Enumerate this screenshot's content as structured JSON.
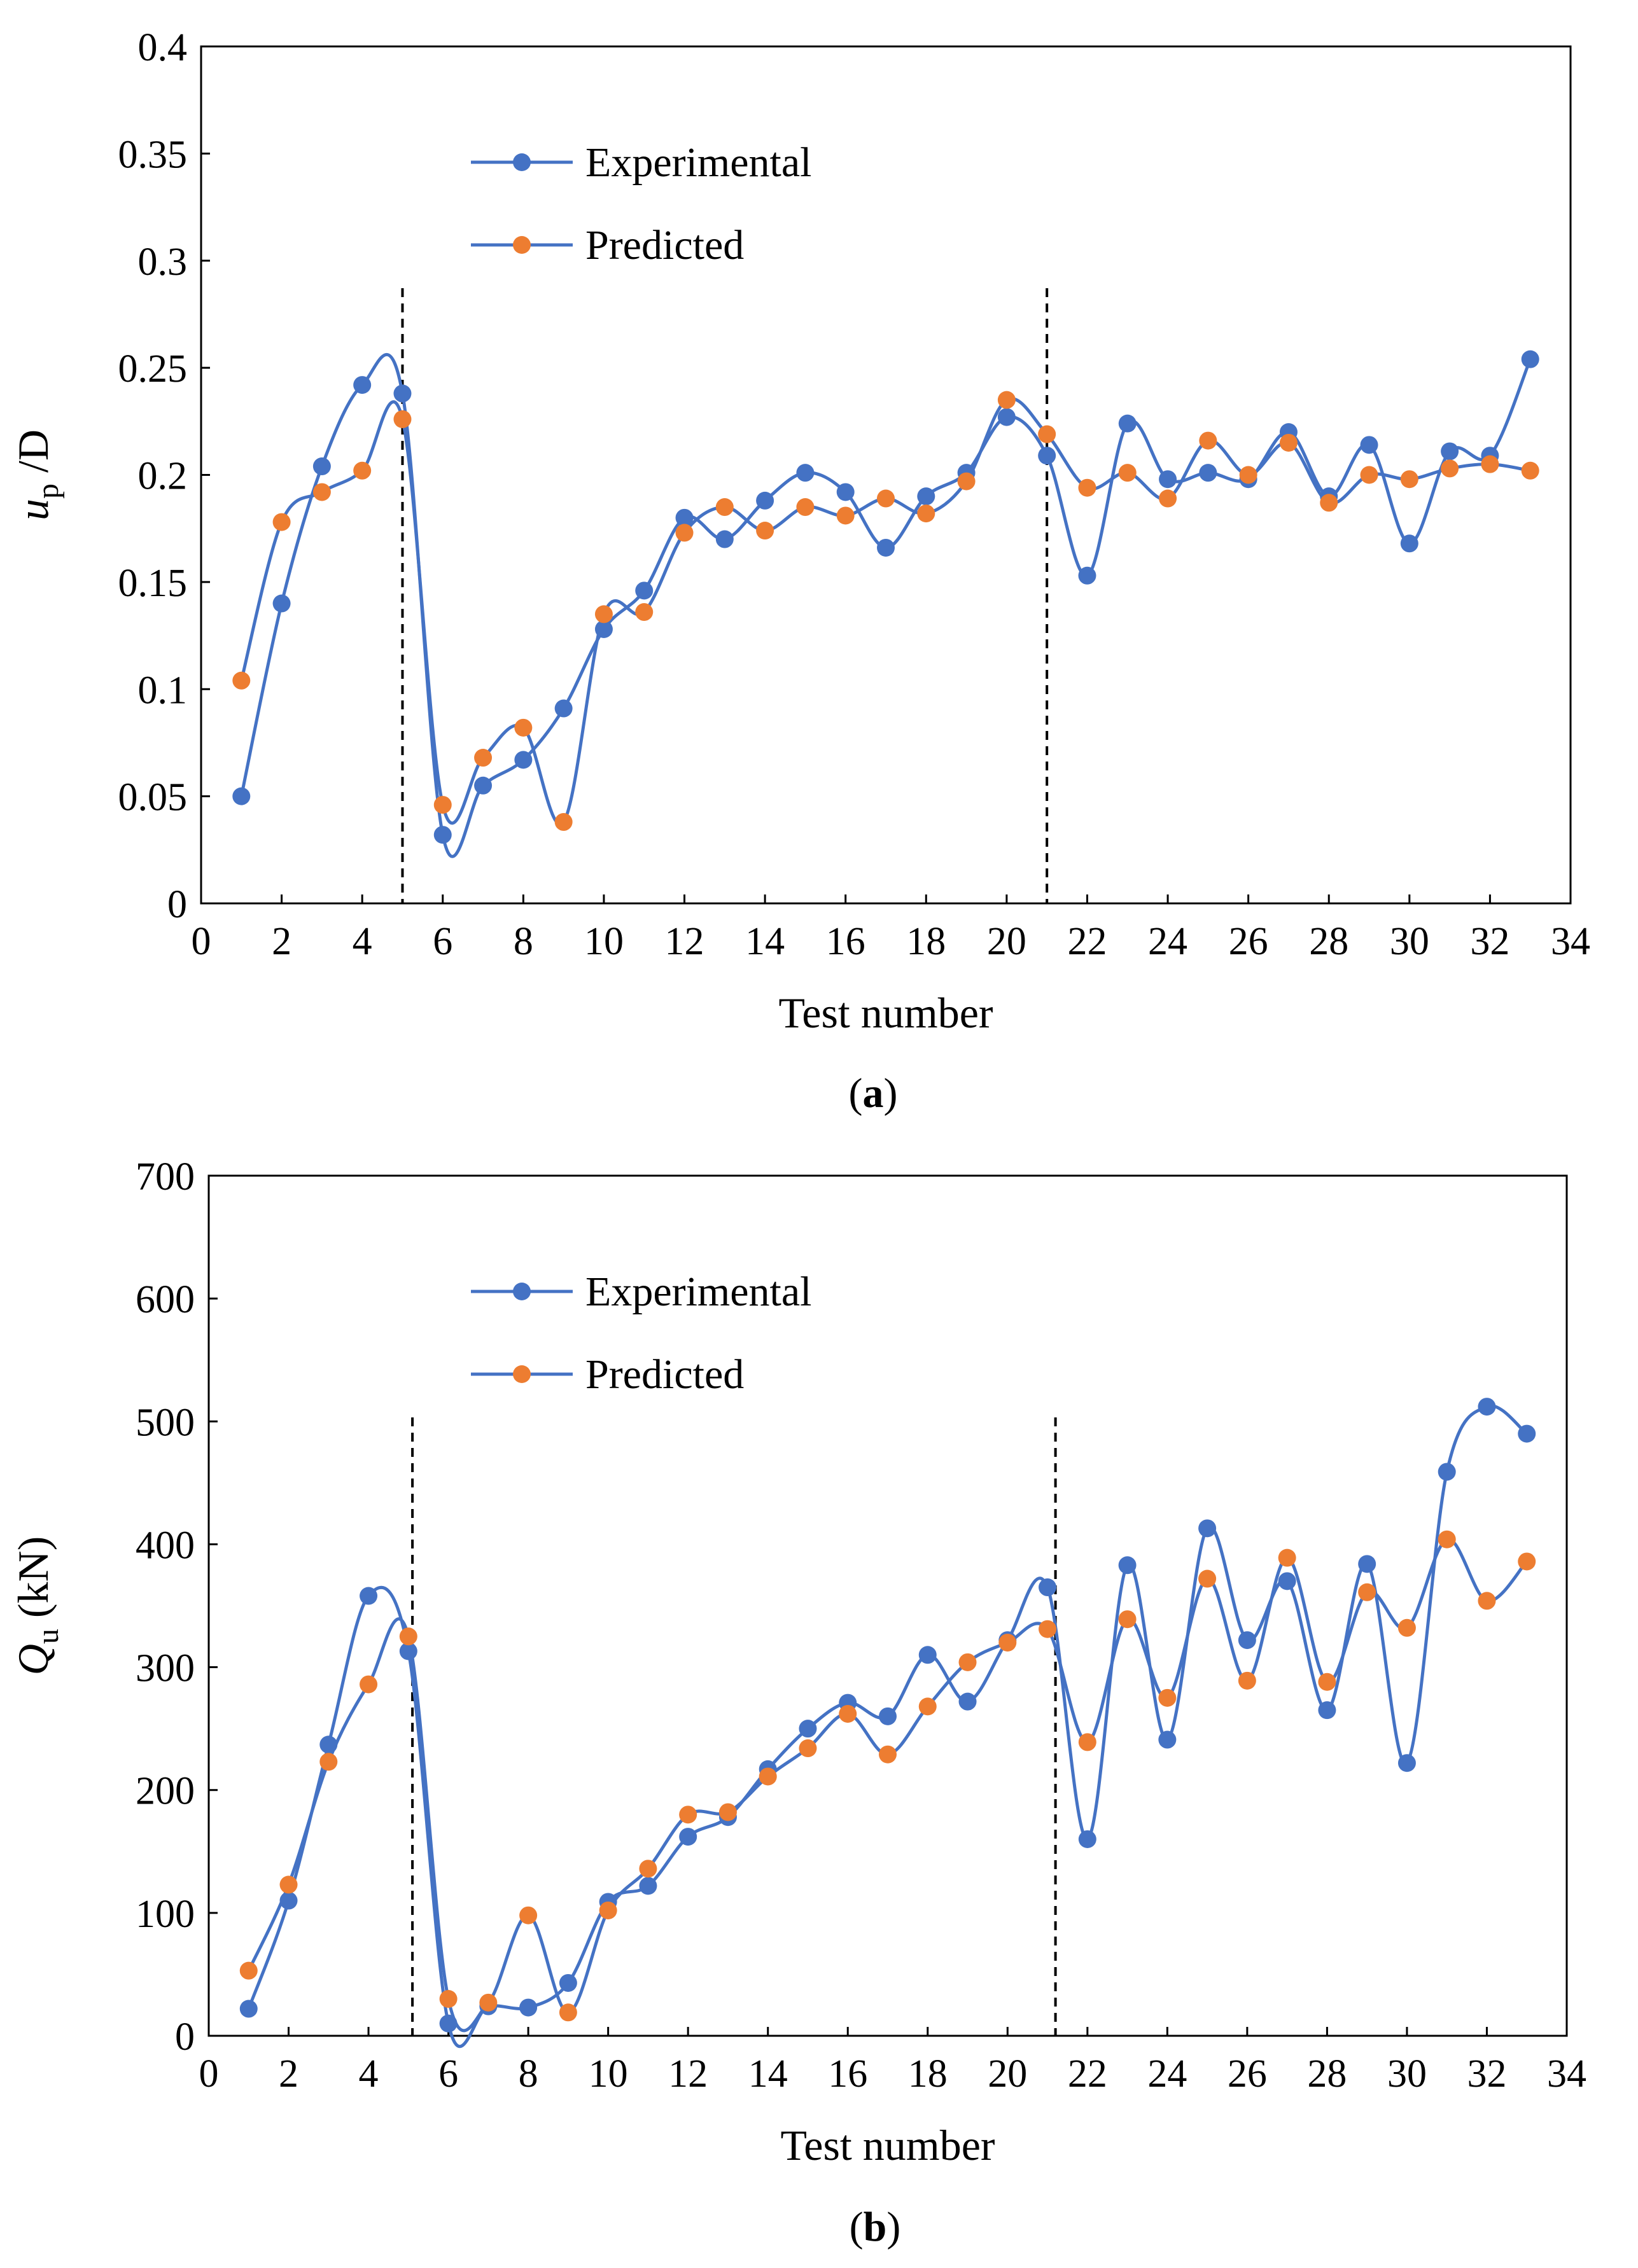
{
  "chart_data": [
    {
      "type": "line",
      "panel_label": "(a)",
      "panel_letter": "a",
      "xlabel": "Test number",
      "ylabel": {
        "symbol": "u",
        "subscript": "p",
        "suffix": " /D"
      },
      "xlim": [
        0,
        34
      ],
      "ylim": [
        0,
        0.4
      ],
      "xticks": [
        0,
        2,
        4,
        6,
        8,
        10,
        12,
        14,
        16,
        18,
        20,
        22,
        24,
        26,
        28,
        30,
        32,
        34
      ],
      "xtick_labels": [
        "0",
        "2",
        "4",
        "6",
        "8",
        "10",
        "12",
        "14",
        "16",
        "18",
        "20",
        "22",
        "24",
        "26",
        "28",
        "30",
        "32",
        "34"
      ],
      "yticks": [
        0,
        0.05,
        0.1,
        0.15,
        0.2,
        0.25,
        0.3,
        0.35,
        0.4
      ],
      "ytick_labels": [
        "0",
        "0.05",
        "0.1",
        "0.15",
        "0.2",
        "0.25",
        "0.3",
        "0.35",
        "0.4"
      ],
      "dashed_vlines": [
        5,
        21
      ],
      "legend": [
        "Experimental",
        "Predicted"
      ],
      "x": [
        1,
        2,
        3,
        4,
        5,
        6,
        7,
        8,
        9,
        10,
        11,
        12,
        13,
        14,
        15,
        16,
        17,
        18,
        19,
        20,
        21,
        22,
        23,
        24,
        25,
        26,
        27,
        28,
        29,
        30,
        31,
        32,
        33
      ],
      "series": [
        {
          "name": "Experimental",
          "color": "#4472C4",
          "marker": "#4472C4",
          "values": [
            0.05,
            0.14,
            0.204,
            0.242,
            0.238,
            0.032,
            0.055,
            0.067,
            0.091,
            0.128,
            0.146,
            0.18,
            0.17,
            0.188,
            0.201,
            0.192,
            0.166,
            0.19,
            0.201,
            0.227,
            0.209,
            0.153,
            0.224,
            0.198,
            0.201,
            0.198,
            0.22,
            0.19,
            0.214,
            0.168,
            0.211,
            0.209,
            0.254
          ]
        },
        {
          "name": "Predicted",
          "color": "#4472C4",
          "marker": "#ED7D31",
          "values": [
            0.104,
            0.178,
            0.192,
            0.202,
            0.226,
            0.046,
            0.068,
            0.082,
            0.038,
            0.135,
            0.136,
            0.173,
            0.185,
            0.174,
            0.185,
            0.181,
            0.189,
            0.182,
            0.197,
            0.235,
            0.219,
            0.194,
            0.201,
            0.189,
            0.216,
            0.2,
            0.215,
            0.187,
            0.2,
            0.198,
            0.203,
            0.205,
            0.202
          ]
        }
      ]
    },
    {
      "type": "line",
      "panel_label": "(b)",
      "panel_letter": "b",
      "xlabel": "Test number",
      "ylabel": {
        "symbol": "Q",
        "subscript": "u",
        "suffix": " (kN)"
      },
      "xlim": [
        0,
        34
      ],
      "ylim": [
        0,
        700
      ],
      "xticks": [
        0,
        2,
        4,
        6,
        8,
        10,
        12,
        14,
        16,
        18,
        20,
        22,
        24,
        26,
        28,
        30,
        32,
        34
      ],
      "xtick_labels": [
        "0",
        "2",
        "4",
        "6",
        "8",
        "10",
        "12",
        "14",
        "16",
        "18",
        "20",
        "22",
        "24",
        "26",
        "28",
        "30",
        "32",
        "34"
      ],
      "yticks": [
        0,
        100,
        200,
        300,
        400,
        500,
        600,
        700
      ],
      "ytick_labels": [
        "0",
        "100",
        "200",
        "300",
        "400",
        "500",
        "600",
        "700"
      ],
      "dashed_vlines": [
        5.1,
        21.2
      ],
      "legend": [
        "Experimental",
        "Predicted"
      ],
      "x": [
        1,
        2,
        3,
        4,
        5,
        6,
        7,
        8,
        9,
        10,
        11,
        12,
        13,
        14,
        15,
        16,
        17,
        18,
        19,
        20,
        21,
        22,
        23,
        24,
        25,
        26,
        27,
        28,
        29,
        30,
        31,
        32,
        33
      ],
      "series": [
        {
          "name": "Experimental",
          "color": "#4472C4",
          "marker": "#4472C4",
          "values": [
            22,
            110,
            237,
            358,
            313,
            10,
            24,
            23,
            43,
            109,
            122,
            162,
            178,
            217,
            250,
            271,
            260,
            310,
            272,
            322,
            365,
            160,
            383,
            241,
            413,
            322,
            370,
            265,
            384,
            222,
            459,
            512,
            490
          ]
        },
        {
          "name": "Predicted",
          "color": "#4472C4",
          "marker": "#ED7D31",
          "values": [
            53,
            123,
            223,
            286,
            325,
            30,
            27,
            98,
            19,
            102,
            136,
            180,
            182,
            211,
            234,
            262,
            229,
            268,
            304,
            320,
            331,
            239,
            339,
            275,
            372,
            289,
            389,
            288,
            361,
            332,
            404,
            354,
            386
          ]
        }
      ]
    }
  ]
}
